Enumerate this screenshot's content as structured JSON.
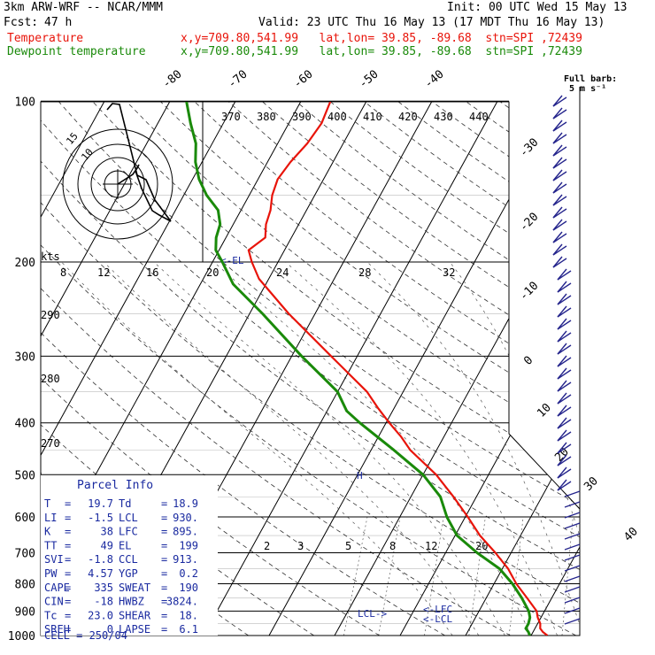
{
  "header": {
    "model": "3km ARW-WRF -- NCAR/MMM",
    "init": "Init: 00 UTC Wed 15 May 13",
    "fcst_label": "Fcst:",
    "fcst_value": "47 h",
    "valid": "Valid: 23 UTC Thu 16 May 13 (17 MDT Thu 16 May 13)",
    "temp_label": "Temperature",
    "temp_info": "x,y=709.80,541.99   lat,lon= 39.85, -89.68  stn=SPI ,72439",
    "dew_label": "Dewpoint temperature",
    "dew_info": "x,y=709.80,541.99   lat,lon= 39.85, -89.68  stn=SPI ,72439"
  },
  "colors": {
    "temperature": "#e8140a",
    "dewpoint": "#1a8a0a",
    "wind": "#24248c",
    "parcel": "#1a2aa0"
  },
  "chart_data": {
    "type": "line",
    "pressure_levels": [
      100,
      200,
      300,
      400,
      500,
      600,
      700,
      800,
      900,
      1000
    ],
    "isotherm_labels": [
      "-80",
      "-70",
      "-60",
      "-50",
      "-40",
      "-30",
      "-20",
      "-10",
      "0",
      "10",
      "20",
      "30",
      "40"
    ],
    "theta_labels": [
      "370",
      "380",
      "390",
      "400",
      "410",
      "420",
      "430",
      "440"
    ],
    "mixing_ratio_labels": [
      "2",
      "3",
      "5",
      "8",
      "12",
      "20"
    ],
    "upper_scale_labels": [
      "8",
      "12",
      "16",
      "20",
      "24",
      "28",
      "32"
    ],
    "left_scale_labels": [
      "290",
      "280",
      "270"
    ],
    "hodograph": {
      "unit_label": "kts",
      "ring_labels": [
        "15",
        "10"
      ]
    },
    "barb_legend": {
      "line1": "Full barb:",
      "line2": "5 m s⁻¹"
    },
    "annotations": {
      "el": "EL",
      "lcl": "LCL",
      "lfc": "LFC"
    },
    "series": [
      {
        "name": "Temperature",
        "values": [
          [
            1000,
            22.5
          ],
          [
            985,
            21.5
          ],
          [
            970,
            20.8
          ],
          [
            950,
            20.4
          ],
          [
            925,
            19.5
          ],
          [
            900,
            18.8
          ],
          [
            850,
            16.2
          ],
          [
            800,
            13.4
          ],
          [
            750,
            10.9
          ],
          [
            700,
            7.6
          ],
          [
            650,
            3.8
          ],
          [
            600,
            0.4
          ],
          [
            550,
            -3.5
          ],
          [
            500,
            -8.0
          ],
          [
            450,
            -14.0
          ],
          [
            425,
            -16.5
          ],
          [
            400,
            -19.5
          ],
          [
            375,
            -22.5
          ],
          [
            350,
            -25.5
          ],
          [
            300,
            -34.0
          ],
          [
            250,
            -44.0
          ],
          [
            215,
            -51.5
          ],
          [
            200,
            -54.0
          ],
          [
            190,
            -55.5
          ],
          [
            180,
            -54.0
          ],
          [
            170,
            -55.0
          ],
          [
            160,
            -55.5
          ],
          [
            150,
            -56.5
          ],
          [
            140,
            -57.0
          ],
          [
            130,
            -56.5
          ],
          [
            120,
            -55.5
          ],
          [
            110,
            -55.0
          ],
          [
            100,
            -55.5
          ]
        ]
      },
      {
        "name": "Dewpoint temperature",
        "values": [
          [
            1000,
            19.8
          ],
          [
            985,
            19.3
          ],
          [
            970,
            18.6
          ],
          [
            950,
            18.6
          ],
          [
            925,
            18.3
          ],
          [
            900,
            17.6
          ],
          [
            850,
            15.4
          ],
          [
            800,
            12.8
          ],
          [
            750,
            9.6
          ],
          [
            700,
            4.8
          ],
          [
            650,
            0.3
          ],
          [
            600,
            -2.8
          ],
          [
            550,
            -5.5
          ],
          [
            500,
            -10.0
          ],
          [
            450,
            -16.5
          ],
          [
            400,
            -24.0
          ],
          [
            380,
            -27.0
          ],
          [
            350,
            -30.0
          ],
          [
            300,
            -38.5
          ],
          [
            250,
            -48.0
          ],
          [
            220,
            -55.0
          ],
          [
            200,
            -58.5
          ],
          [
            190,
            -60.5
          ],
          [
            180,
            -61.5
          ],
          [
            170,
            -62.0
          ],
          [
            160,
            -63.5
          ],
          [
            150,
            -66.5
          ],
          [
            140,
            -69.0
          ],
          [
            130,
            -71.0
          ],
          [
            120,
            -72.5
          ],
          [
            110,
            -75.0
          ],
          [
            100,
            -77.5
          ]
        ]
      }
    ]
  },
  "parcel_info": {
    "title": "Parcel Info",
    "rows": [
      {
        "a_label": "T",
        "a_value": "19.7",
        "b_label": "Td",
        "b_value": "18.9"
      },
      {
        "a_label": "LI",
        "a_value": "-1.5",
        "b_label": "LCL",
        "b_value": "930."
      },
      {
        "a_label": "K",
        "a_value": "38",
        "b_label": "LFC",
        "b_value": "895."
      },
      {
        "a_label": "TT",
        "a_value": "49",
        "b_label": "EL",
        "b_value": "199"
      },
      {
        "a_label": "SVI",
        "a_value": "-1.8",
        "b_label": "CCL",
        "b_value": "913."
      },
      {
        "a_label": "PW",
        "a_value": "4.57",
        "b_label": "YGP",
        "b_value": "0.2"
      },
      {
        "a_label": "CAPE",
        "a_value": "335",
        "b_label": "SWEAT",
        "b_value": "190"
      },
      {
        "a_label": "CIN",
        "a_value": "-18",
        "b_label": "HWBZ",
        "b_value": "3824."
      },
      {
        "a_label": "Tc",
        "a_value": "23.0",
        "b_label": "SHEAR",
        "b_value": "18."
      },
      {
        "a_label": "SREH",
        "a_value": "0",
        "b_label": "LAPSE",
        "b_value": "6.1"
      }
    ],
    "cell": "CELL = 250/04"
  }
}
